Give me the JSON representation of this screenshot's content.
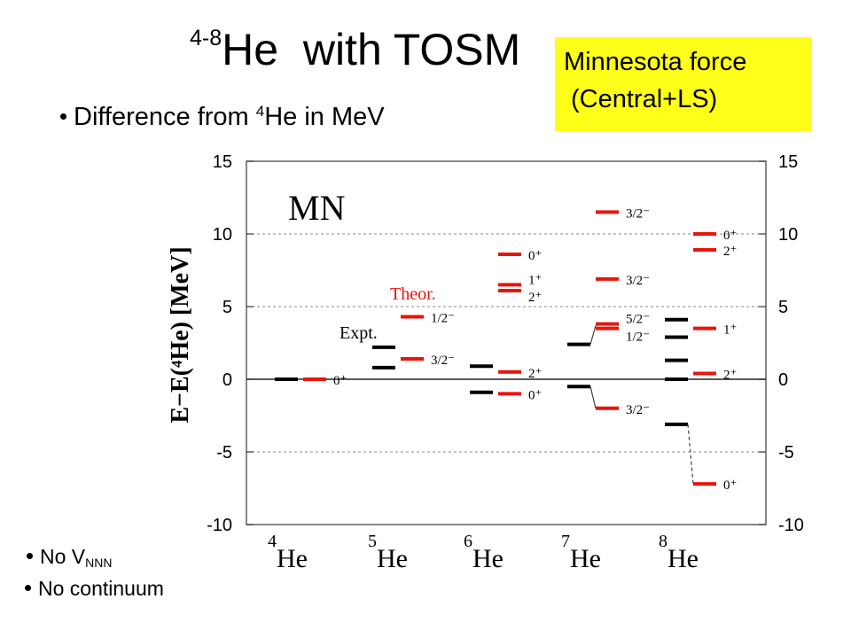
{
  "title": {
    "sup": "4-8",
    "main": "He  with TOSM"
  },
  "bullet_top": {
    "pre": "Difference from ",
    "sup": "4",
    "post": "He in MeV"
  },
  "force_box": {
    "line1": "Minnesota force",
    "line2": "(Central+LS)",
    "color": "#ffff1a"
  },
  "notes": {
    "n1_pre": "No V",
    "n1_sub": "NNN",
    "n2": "No continuum"
  },
  "chart_data": {
    "type": "level-scheme",
    "tag": "MN",
    "ylabel": "E−E(⁴He)  [MeV]",
    "ylim": [
      -10,
      15
    ],
    "yticks": [
      15,
      10,
      5,
      0,
      -5,
      -10
    ],
    "ytick_labels": [
      "15",
      "10",
      "5",
      "0",
      "-5",
      "-10"
    ],
    "grid": "dashed at each y tick",
    "categories": [
      {
        "mass": "4",
        "name": "He"
      },
      {
        "mass": "5",
        "name": "He"
      },
      {
        "mass": "6",
        "name": "He"
      },
      {
        "mass": "7",
        "name": "He"
      },
      {
        "mass": "8",
        "name": "He"
      }
    ],
    "legend_labels": {
      "expt": "Expt.",
      "theor": "Theor."
    },
    "colors": {
      "expt": "#000000",
      "theor": "#e8150b"
    },
    "series": [
      {
        "name": "Expt.",
        "levels": [
          {
            "nucleus": 0,
            "E": 0.0
          },
          {
            "nucleus": 1,
            "E": 2.2
          },
          {
            "nucleus": 1,
            "E": 0.8
          },
          {
            "nucleus": 2,
            "E": 0.9
          },
          {
            "nucleus": 2,
            "E": -0.9
          },
          {
            "nucleus": 3,
            "E": 2.4
          },
          {
            "nucleus": 3,
            "E": -0.5
          },
          {
            "nucleus": 4,
            "E": 4.1
          },
          {
            "nucleus": 4,
            "E": 2.9
          },
          {
            "nucleus": 4,
            "E": 1.3
          },
          {
            "nucleus": 4,
            "E": 0.0
          },
          {
            "nucleus": 4,
            "E": -3.1
          }
        ]
      },
      {
        "name": "Theor.",
        "levels": [
          {
            "nucleus": 0,
            "E": 0.0,
            "label": "0⁺"
          },
          {
            "nucleus": 1,
            "E": 4.3,
            "label": "1/2⁻"
          },
          {
            "nucleus": 1,
            "E": 1.4,
            "label": "3/2⁻"
          },
          {
            "nucleus": 2,
            "E": 8.6,
            "label": "0⁺"
          },
          {
            "nucleus": 2,
            "E": 6.5,
            "label": "1⁺"
          },
          {
            "nucleus": 2,
            "E": 6.1,
            "label": "2⁺"
          },
          {
            "nucleus": 2,
            "E": 0.5,
            "label": "2⁺"
          },
          {
            "nucleus": 2,
            "E": -1.0,
            "label": "0⁺"
          },
          {
            "nucleus": 3,
            "E": 11.5,
            "label": "3/2⁻"
          },
          {
            "nucleus": 3,
            "E": 6.9,
            "label": "3/2⁻"
          },
          {
            "nucleus": 3,
            "E": 3.8,
            "label": "5/2⁻"
          },
          {
            "nucleus": 3,
            "E": 3.5,
            "label": "1/2⁻"
          },
          {
            "nucleus": 3,
            "E": -2.0,
            "label": "3/2⁻"
          },
          {
            "nucleus": 4,
            "E": 10.0,
            "label": "0⁺"
          },
          {
            "nucleus": 4,
            "E": 8.9,
            "label": "2⁺"
          },
          {
            "nucleus": 4,
            "E": 3.5,
            "label": "1⁺"
          },
          {
            "nucleus": 4,
            "E": 0.4,
            "label": "2⁺"
          },
          {
            "nucleus": 4,
            "E": -7.2,
            "label": "0⁺"
          }
        ]
      }
    ]
  }
}
